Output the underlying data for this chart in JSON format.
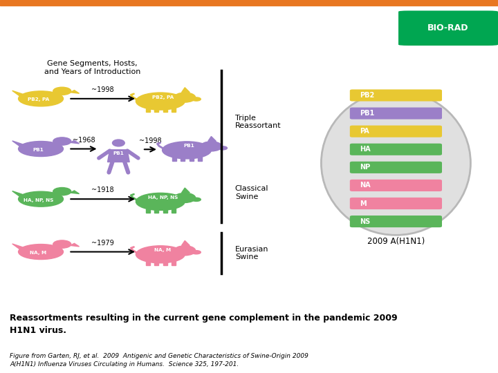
{
  "bg_header_color": "#1a1a1a",
  "bg_main_color": "#ffffff",
  "orange_bar_color": "#e87722",
  "biorad_green": "#00a651",
  "biorad_text": "BIO-RAD",
  "diagram_title": "Gene Segments, Hosts,\nand Years of Introduction",
  "colors": {
    "avian_yellow": "#e8c832",
    "human_purple": "#9b7fc8",
    "swine_green": "#5ab55a",
    "swine_pink": "#f082a0"
  },
  "segments": [
    {
      "label": "PB2",
      "color": "#e8c832"
    },
    {
      "label": "PB1",
      "color": "#9b7fc8"
    },
    {
      "label": "PA",
      "color": "#e8c832"
    },
    {
      "label": "HA",
      "color": "#5ab55a"
    },
    {
      "label": "NP",
      "color": "#5ab55a"
    },
    {
      "label": "NA",
      "color": "#f082a0"
    },
    {
      "label": "M",
      "color": "#f082a0"
    },
    {
      "label": "NS",
      "color": "#5ab55a"
    }
  ],
  "main_title_bold": "Reassortments resulting in the current gene complement in the pandemic 2009\nH1N1 virus.",
  "caption": "Figure from Garten, RJ, et al.  2009  Antigenic and Genetic Characteristics of Swine-Origin 2009\nA(H1N1) Influenza Viruses Circulating in Humans.  Science 325, 197-201.",
  "year2009": "2009 A(H1N1)",
  "virus_ellipse_color": "#e0e0e0",
  "virus_ellipse_edge": "#b8b8b8"
}
